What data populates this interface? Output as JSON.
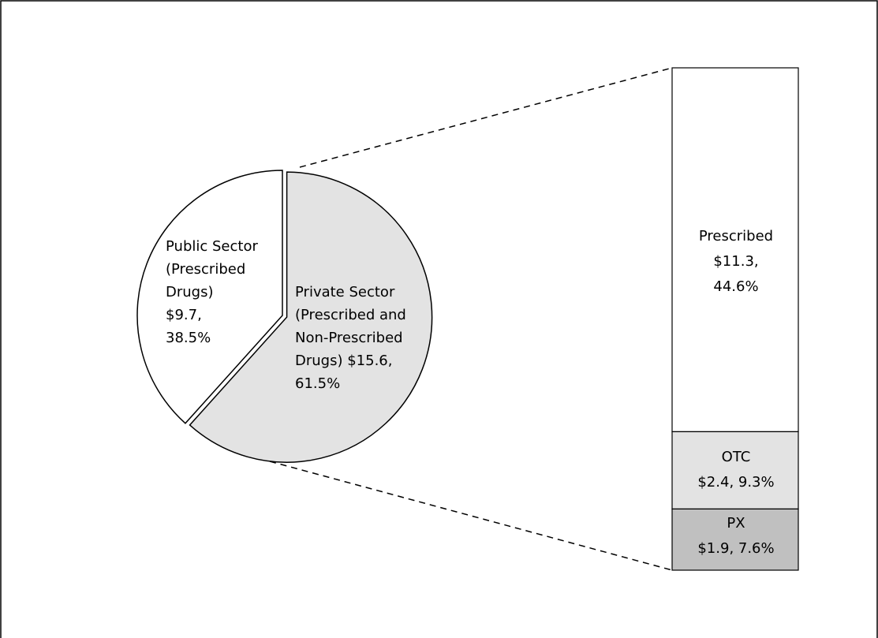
{
  "chart_data": {
    "type": "pie",
    "title": "",
    "pie": {
      "slices": [
        {
          "label_lines": [
            "Public Sector",
            "(Prescribed",
            "Drugs)",
            "$9.7,",
            "38.5%"
          ],
          "value": 9.7,
          "percent": 38.5,
          "color": "#ffffff"
        },
        {
          "label_lines": [
            "Private Sector",
            "(Prescribed and",
            "Non-Prescribed",
            "Drugs) $15.6,",
            "61.5%"
          ],
          "value": 15.6,
          "percent": 61.5,
          "color": "#e3e3e3",
          "exploded": true
        }
      ]
    },
    "breakdown": {
      "type": "stacked-bar",
      "of_slice": "Private Sector",
      "segments": [
        {
          "label_lines": [
            "Prescribed",
            "$11.3,",
            "44.6%"
          ],
          "value": 11.3,
          "percent": 44.6,
          "color": "#ffffff"
        },
        {
          "label_lines": [
            "OTC",
            "$2.4, 9.3%"
          ],
          "value": 2.4,
          "percent": 9.3,
          "color": "#e3e3e3"
        },
        {
          "label_lines": [
            "PX",
            "$1.9, 7.6%"
          ],
          "value": 1.9,
          "percent": 7.6,
          "color": "#c0c0c0"
        }
      ]
    },
    "connector_style": "dashed",
    "frame_border": true
  }
}
